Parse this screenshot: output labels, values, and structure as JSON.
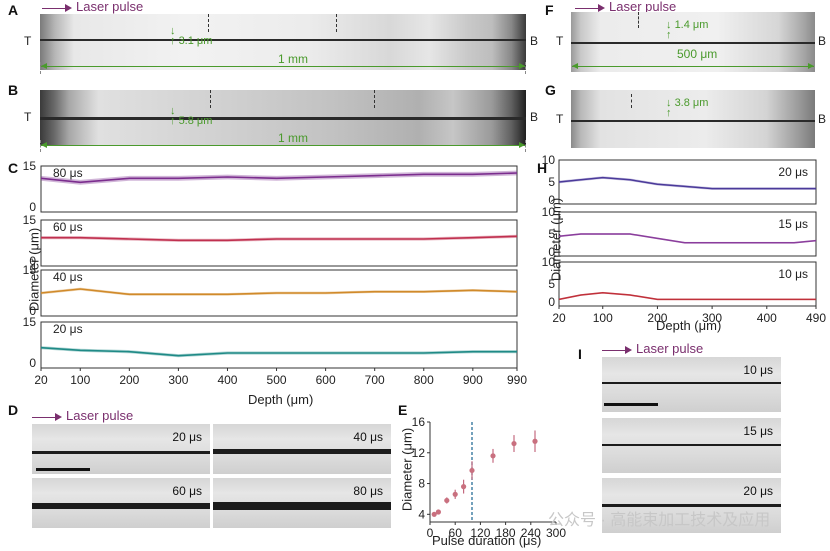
{
  "panels": {
    "A": {
      "letter": "A",
      "laser": "Laser pulse",
      "top_label": "T",
      "bottom_label": "B",
      "width_label": "3.1 μm",
      "scale_label": "1 mm"
    },
    "B": {
      "letter": "B",
      "top_label": "T",
      "bottom_label": "B",
      "width_label": "5.8 μm",
      "scale_label": "1 mm"
    },
    "F": {
      "letter": "F",
      "laser": "Laser pulse",
      "top_label": "T",
      "bottom_label": "B",
      "width_label": "1.4 μm",
      "scale_label": "500 μm"
    },
    "G": {
      "letter": "G",
      "top_label": "T",
      "bottom_label": "B",
      "width_label": "3.8 μm"
    },
    "C": {
      "letter": "C",
      "ylabel": "Diameter (μm)",
      "xlabel": "Depth (μm)",
      "xticks": [
        "20",
        "100",
        "200",
        "300",
        "400",
        "500",
        "600",
        "700",
        "800",
        "900",
        "990"
      ],
      "rows": [
        {
          "label": "80 μs",
          "yticks": [
            "15",
            "0"
          ],
          "color": "#7b2d8e"
        },
        {
          "label": "60 μs",
          "yticks": [
            "15",
            "0"
          ],
          "color": "#c0304f"
        },
        {
          "label": "40 μs",
          "yticks": [
            "15",
            "0"
          ],
          "color": "#d08a2a"
        },
        {
          "label": "20 μs",
          "yticks": [
            "15",
            "0"
          ],
          "color": "#1f8a86"
        }
      ]
    },
    "H": {
      "letter": "H",
      "ylabel": "Diameter (μm)",
      "xlabel": "Depth (μm)",
      "xticks": [
        "20",
        "100",
        "200",
        "300",
        "400",
        "490"
      ],
      "rows": [
        {
          "label": "20 μs",
          "yticks": [
            "10",
            "5",
            "0"
          ],
          "color": "#4b3a9a"
        },
        {
          "label": "15 μs",
          "yticks": [
            "10",
            "5",
            "0"
          ],
          "color": "#8a3d9c"
        },
        {
          "label": "10 μs",
          "yticks": [
            "10",
            "5",
            "0"
          ],
          "color": "#c0303a"
        }
      ]
    },
    "D": {
      "letter": "D",
      "laser": "Laser pulse",
      "tiles": [
        "20 μs",
        "40 μs",
        "60 μs",
        "80 μs"
      ]
    },
    "E": {
      "letter": "E",
      "ylabel": "Diameter (μm)",
      "xlabel": "Pulse duration (μs)",
      "xticks": [
        "0",
        "60",
        "120",
        "180",
        "240",
        "300"
      ],
      "yticks": [
        "4",
        "8",
        "12",
        "16"
      ]
    },
    "I": {
      "letter": "I",
      "laser": "Laser pulse",
      "tiles": [
        "10 μs",
        "15 μs",
        "20 μs"
      ]
    }
  },
  "watermark": "公众号 · 高能束加工技术及应用",
  "chart_data": [
    {
      "type": "scatter",
      "title": "",
      "xlabel": "Pulse duration (μs)",
      "ylabel": "Diameter (μm)",
      "xlim": [
        0,
        300
      ],
      "ylim": [
        3,
        16
      ],
      "threshold_x": 100,
      "points": [
        {
          "x": 10,
          "y": 4.0,
          "err": 0.3
        },
        {
          "x": 20,
          "y": 4.3,
          "err": 0.3
        },
        {
          "x": 40,
          "y": 5.8,
          "err": 0.4
        },
        {
          "x": 60,
          "y": 6.6,
          "err": 0.6
        },
        {
          "x": 80,
          "y": 7.6,
          "err": 0.9
        },
        {
          "x": 100,
          "y": 9.7,
          "err": 1.2
        },
        {
          "x": 150,
          "y": 11.6,
          "err": 0.9
        },
        {
          "x": 200,
          "y": 13.2,
          "err": 1.1
        },
        {
          "x": 250,
          "y": 13.5,
          "err": 1.4
        }
      ]
    },
    {
      "type": "line",
      "xlabel": "Depth (μm)",
      "ylabel": "Diameter (μm)",
      "xlim": [
        20,
        990
      ],
      "ylim": [
        0,
        15
      ],
      "series": [
        {
          "name": "80 μs",
          "color": "#7b2d8e",
          "x": [
            20,
            100,
            200,
            300,
            400,
            500,
            600,
            700,
            800,
            900,
            990
          ],
          "y": [
            11.5,
            10.0,
            11.5,
            11.5,
            12.0,
            11.5,
            12.0,
            12.5,
            13.0,
            13.0,
            13.5
          ],
          "band": 1.8
        },
        {
          "name": "60 μs",
          "color": "#c0304f",
          "x": [
            20,
            100,
            200,
            300,
            400,
            500,
            600,
            700,
            800,
            900,
            990
          ],
          "y": [
            9.5,
            9.5,
            9.0,
            8.5,
            8.5,
            9.0,
            9.0,
            9.0,
            9.0,
            9.5,
            10.0
          ],
          "band": 1.2
        },
        {
          "name": "40 μs",
          "color": "#d08a2a",
          "x": [
            20,
            100,
            200,
            300,
            400,
            500,
            600,
            700,
            800,
            900,
            990
          ],
          "y": [
            7.5,
            9.0,
            7.0,
            7.0,
            7.0,
            7.5,
            7.5,
            8.0,
            8.0,
            8.5,
            8.0
          ],
          "band": 1.0
        },
        {
          "name": "20 μs",
          "color": "#1f8a86",
          "x": [
            20,
            100,
            200,
            300,
            400,
            500,
            600,
            700,
            800,
            900,
            990
          ],
          "y": [
            6.5,
            5.5,
            5.0,
            3.5,
            4.5,
            4.5,
            4.5,
            4.5,
            4.5,
            5.0,
            5.0
          ],
          "band": 1.2
        }
      ]
    },
    {
      "type": "line",
      "xlabel": "Depth (μm)",
      "ylabel": "Diameter (μm)",
      "xlim": [
        20,
        490
      ],
      "ylim": [
        0,
        10
      ],
      "series": [
        {
          "name": "20 μs",
          "color": "#4b3a9a",
          "x": [
            20,
            60,
            100,
            150,
            200,
            250,
            300,
            350,
            400,
            450,
            490
          ],
          "y": [
            5.0,
            5.5,
            6.0,
            5.5,
            4.5,
            4.0,
            3.5,
            3.5,
            3.5,
            3.5,
            3.5
          ],
          "band": 0.6
        },
        {
          "name": "15 μs",
          "color": "#8a3d9c",
          "x": [
            20,
            60,
            100,
            150,
            200,
            250,
            300,
            350,
            400,
            450,
            490
          ],
          "y": [
            4.5,
            5.0,
            5.0,
            5.0,
            4.0,
            3.0,
            3.0,
            3.0,
            3.0,
            3.0,
            3.5
          ],
          "band": 0.4
        },
        {
          "name": "10 μs",
          "color": "#c0303a",
          "x": [
            20,
            60,
            100,
            150,
            200,
            250,
            300,
            350,
            400,
            450,
            490
          ],
          "y": [
            1.5,
            2.5,
            3.0,
            2.5,
            1.5,
            1.5,
            1.5,
            1.5,
            1.5,
            1.5,
            1.5
          ],
          "band": 0.4
        }
      ]
    }
  ]
}
